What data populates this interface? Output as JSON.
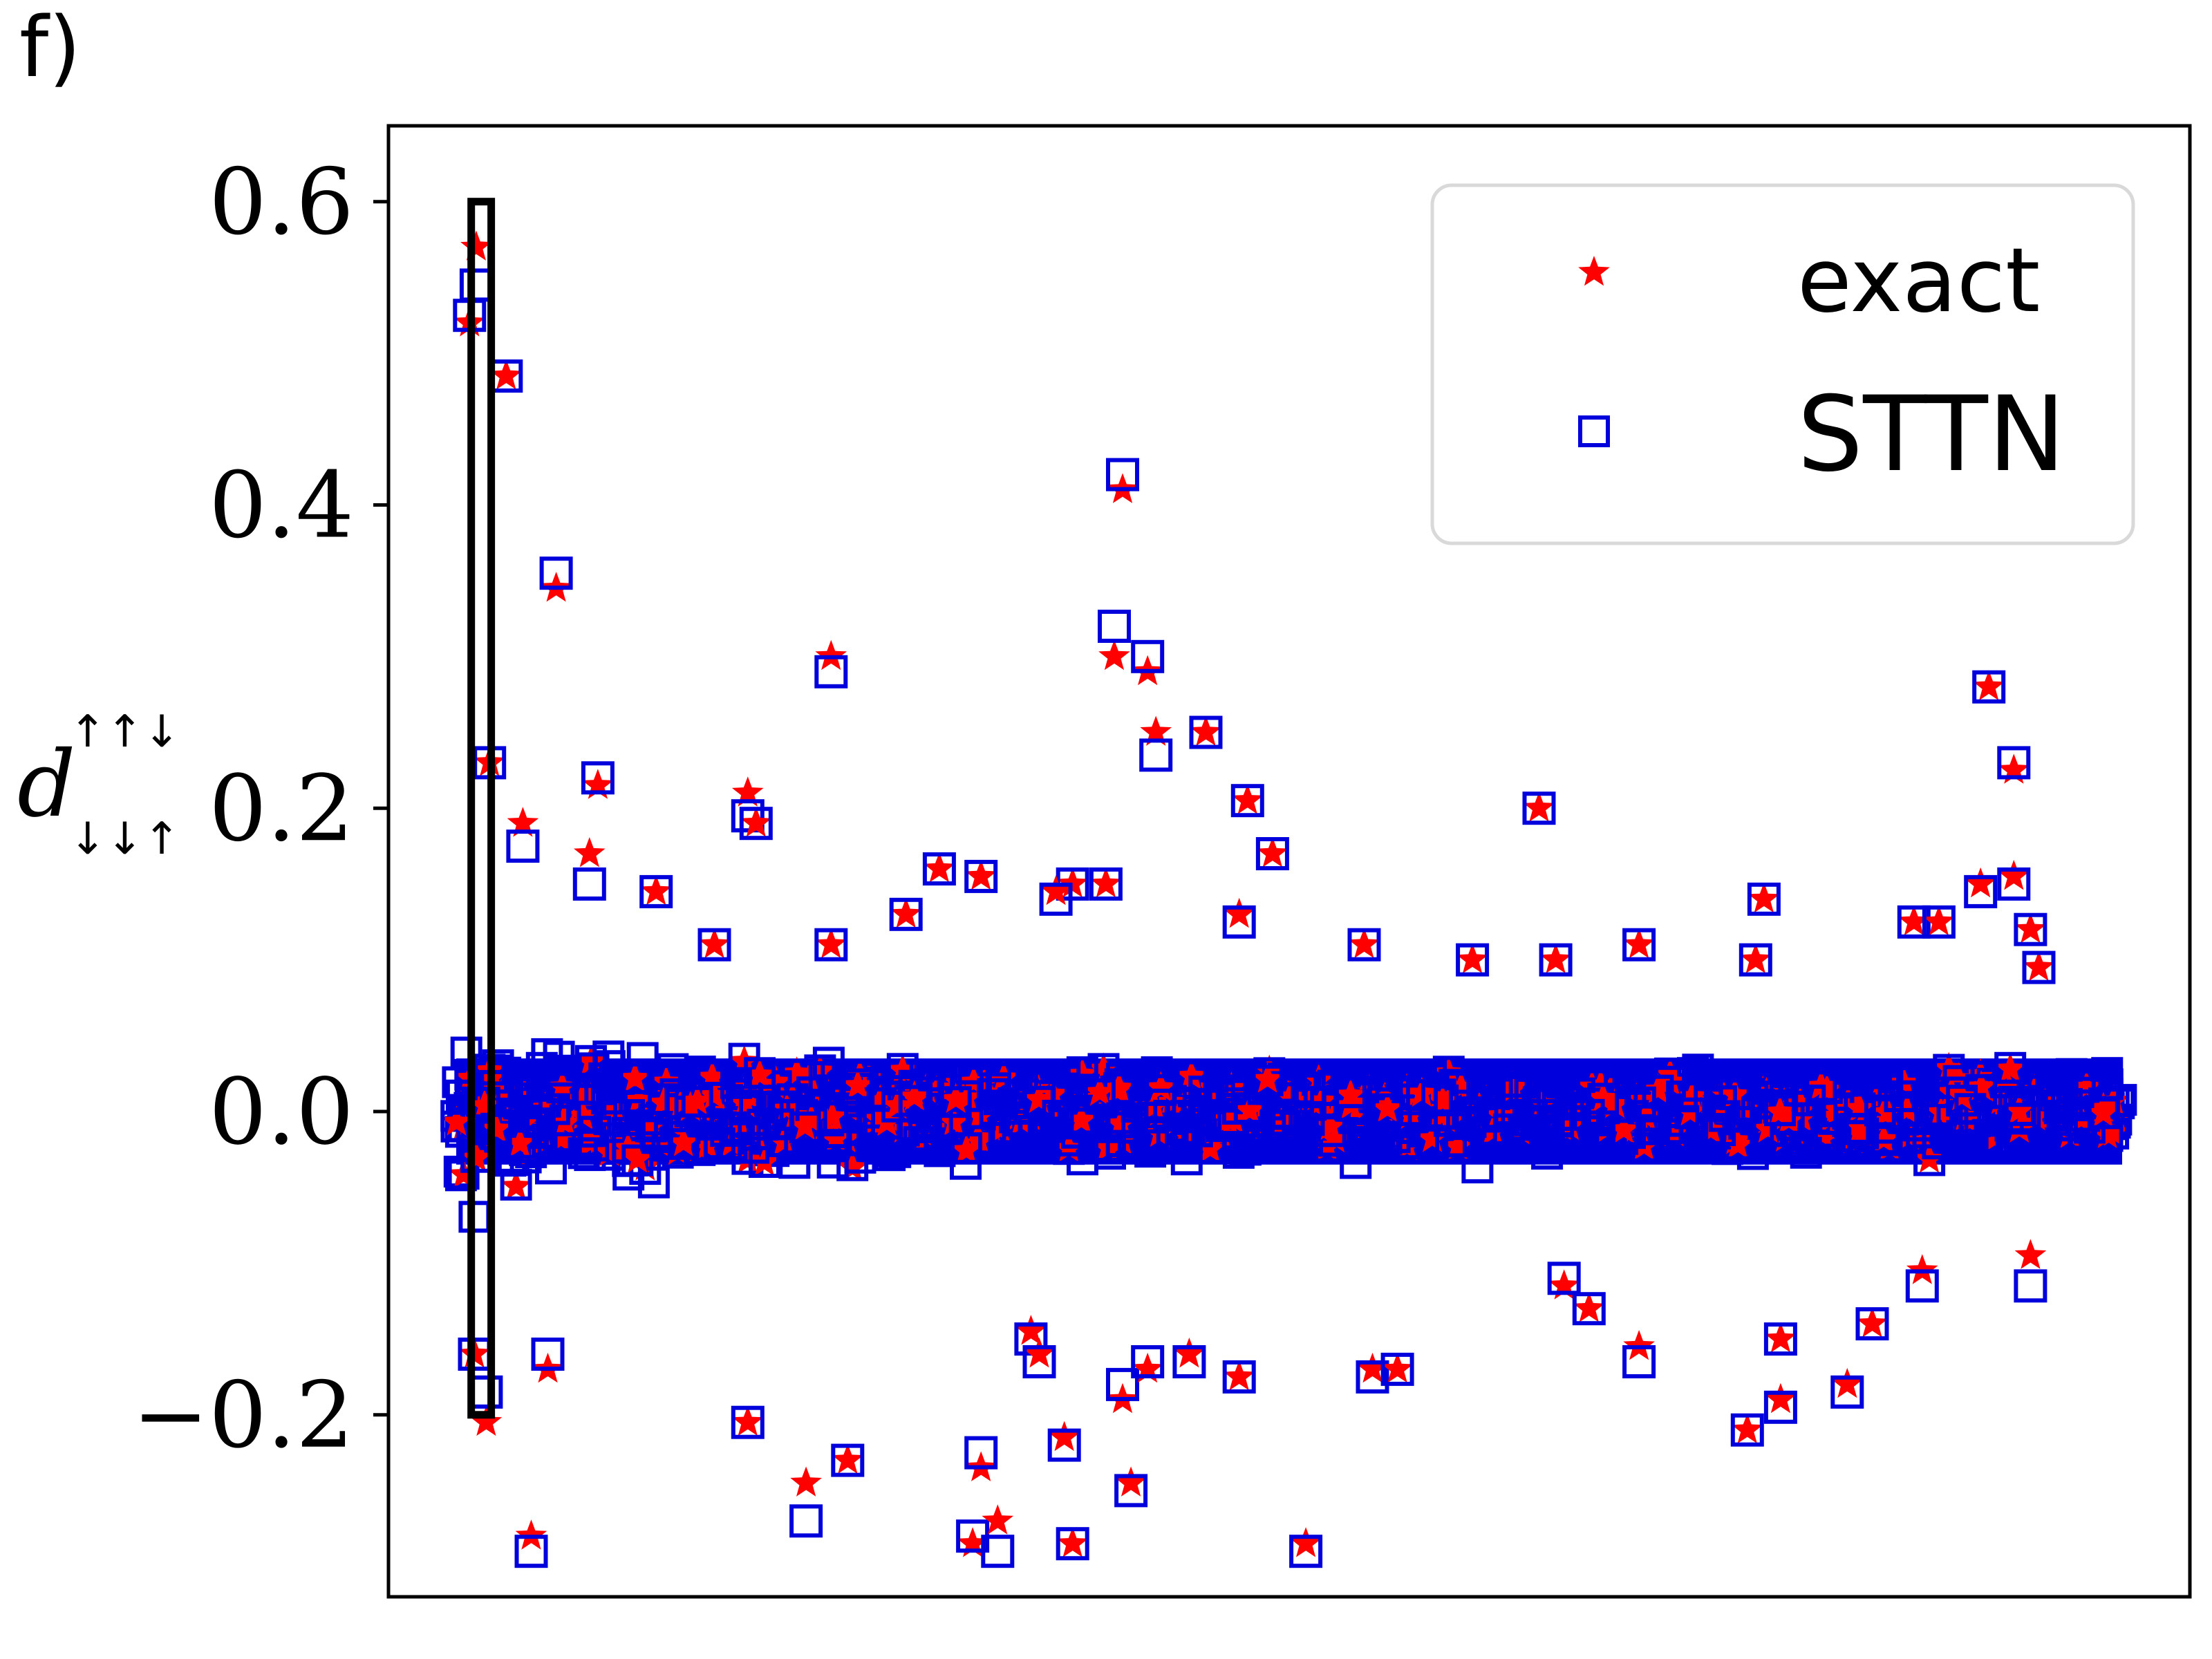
{
  "panel_label": "f)",
  "chart_data": {
    "type": "scatter",
    "title": "",
    "xlabel": "",
    "ylabel": {
      "main": "d",
      "superscript": "↑↑↓",
      "subscript": "↓↓↑"
    },
    "x_ticks_shown": false,
    "xlim": [
      0,
      1
    ],
    "ylim": [
      -0.32,
      0.65
    ],
    "yticks": [
      -0.2,
      0.0,
      0.2,
      0.4,
      0.6
    ],
    "ytick_labels": [
      "−0.2",
      "0.0",
      "0.2",
      "0.4",
      "0.6"
    ],
    "grid": false,
    "legend_placement": "top-right",
    "highlight_box": {
      "x_range": [
        0.009,
        0.021
      ],
      "y_range": [
        -0.2,
        0.6
      ],
      "color": "#000000"
    },
    "series": [
      {
        "name": "exact",
        "marker": "star",
        "color": "#ff0000"
      },
      {
        "name": "STTN",
        "marker": "open-square",
        "color": "#0000dd"
      }
    ],
    "points": [
      [
        0.012,
        0.57,
        0.545
      ],
      [
        0.008,
        0.52,
        0.525
      ],
      [
        0.02,
        0.23,
        0.23
      ],
      [
        0.018,
        -0.205,
        -0.185
      ],
      [
        0.011,
        -0.16,
        -0.16
      ],
      [
        0.03,
        0.485,
        0.485
      ],
      [
        0.06,
        0.345,
        0.355
      ],
      [
        0.225,
        0.3,
        0.29
      ],
      [
        0.4,
        0.41,
        0.42
      ],
      [
        0.395,
        0.3,
        0.32
      ],
      [
        0.415,
        0.29,
        0.3
      ],
      [
        0.42,
        0.25,
        0.235
      ],
      [
        0.45,
        0.25,
        0.25
      ],
      [
        0.475,
        0.205,
        0.205
      ],
      [
        0.49,
        0.17,
        0.17
      ],
      [
        0.65,
        0.2,
        0.2
      ],
      [
        0.92,
        0.28,
        0.28
      ],
      [
        0.935,
        0.225,
        0.23
      ],
      [
        0.04,
        0.19,
        0.175
      ],
      [
        0.085,
        0.215,
        0.22
      ],
      [
        0.08,
        0.17,
        0.15
      ],
      [
        0.175,
        0.21,
        0.195
      ],
      [
        0.18,
        0.19,
        0.19
      ],
      [
        0.29,
        0.16,
        0.16
      ],
      [
        0.37,
        0.15,
        0.15
      ],
      [
        0.39,
        0.15,
        0.15
      ],
      [
        0.915,
        0.15,
        0.145
      ],
      [
        0.935,
        0.155,
        0.15
      ],
      [
        0.36,
        0.145,
        0.14
      ],
      [
        0.315,
        0.155,
        0.155
      ],
      [
        0.045,
        -0.28,
        -0.29
      ],
      [
        0.175,
        -0.205,
        -0.205
      ],
      [
        0.21,
        -0.245,
        -0.27
      ],
      [
        0.235,
        -0.23,
        -0.23
      ],
      [
        0.31,
        -0.285,
        -0.28
      ],
      [
        0.315,
        -0.235,
        -0.225
      ],
      [
        0.325,
        -0.27,
        -0.29
      ],
      [
        0.37,
        -0.285,
        -0.285
      ],
      [
        0.405,
        -0.245,
        -0.25
      ],
      [
        0.51,
        -0.285,
        -0.29
      ],
      [
        0.365,
        -0.215,
        -0.22
      ],
      [
        0.4,
        -0.19,
        -0.18
      ],
      [
        0.775,
        -0.21,
        -0.21
      ],
      [
        0.795,
        -0.19,
        -0.195
      ],
      [
        0.835,
        -0.18,
        -0.185
      ],
      [
        0.795,
        -0.15,
        -0.15
      ],
      [
        0.71,
        -0.155,
        -0.165
      ],
      [
        0.55,
        -0.17,
        -0.175
      ],
      [
        0.565,
        -0.17,
        -0.17
      ],
      [
        0.47,
        -0.175,
        -0.175
      ],
      [
        0.44,
        -0.16,
        -0.165
      ],
      [
        0.415,
        -0.17,
        -0.165
      ],
      [
        0.345,
        -0.145,
        -0.15
      ],
      [
        0.35,
        -0.16,
        -0.165
      ],
      [
        0.055,
        -0.17,
        -0.16
      ],
      [
        0.85,
        -0.14,
        -0.14
      ],
      [
        0.88,
        -0.105,
        -0.115
      ],
      [
        0.945,
        -0.095,
        -0.115
      ],
      [
        0.665,
        -0.115,
        -0.11
      ],
      [
        0.68,
        -0.13,
        -0.13
      ],
      [
        0.225,
        0.11,
        0.11
      ],
      [
        0.27,
        0.13,
        0.13
      ],
      [
        0.47,
        0.13,
        0.125
      ],
      [
        0.545,
        0.11,
        0.11
      ],
      [
        0.61,
        0.1,
        0.1
      ],
      [
        0.66,
        0.1,
        0.1
      ],
      [
        0.71,
        0.11,
        0.11
      ],
      [
        0.78,
        0.1,
        0.1
      ],
      [
        0.785,
        0.14,
        0.14
      ],
      [
        0.875,
        0.125,
        0.125
      ],
      [
        0.89,
        0.125,
        0.125
      ],
      [
        0.945,
        0.12,
        0.12
      ],
      [
        0.95,
        0.095,
        0.095
      ],
      [
        0.12,
        0.145,
        0.145
      ],
      [
        0.155,
        0.11,
        0.11
      ]
    ]
  }
}
